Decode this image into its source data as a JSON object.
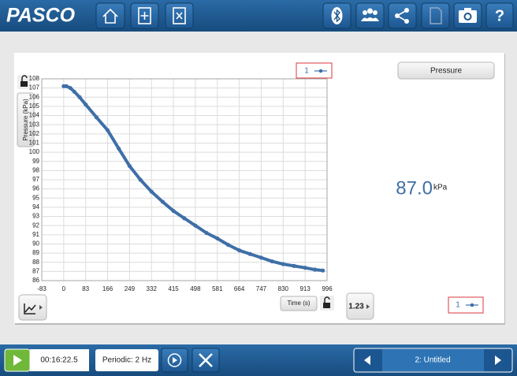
{
  "header": {
    "logo": "PASCO",
    "help": "?"
  },
  "chart_data": {
    "type": "line",
    "x": [
      0,
      10,
      25,
      40,
      60,
      83,
      124,
      166,
      208,
      249,
      290,
      332,
      374,
      415,
      456,
      498,
      540,
      581,
      622,
      664,
      705,
      747,
      788,
      830,
      871,
      913,
      950,
      980
    ],
    "series": [
      {
        "name": "1",
        "color": "#3f6fa8",
        "values": [
          107.2,
          107.2,
          107.0,
          106.6,
          106.0,
          105.2,
          103.8,
          102.4,
          100.4,
          98.5,
          97.0,
          95.7,
          94.6,
          93.6,
          92.8,
          92.0,
          91.2,
          90.6,
          89.9,
          89.3,
          88.9,
          88.5,
          88.1,
          87.8,
          87.6,
          87.4,
          87.2,
          87.1
        ]
      }
    ],
    "xlim": [
      -83,
      996
    ],
    "ylim": [
      86,
      108
    ],
    "xticks": [
      -83,
      0,
      83,
      166,
      249,
      332,
      415,
      498,
      581,
      664,
      747,
      830,
      913,
      996
    ],
    "yticks": [
      86,
      87,
      88,
      89,
      90,
      91,
      92,
      93,
      94,
      95,
      96,
      97,
      98,
      99,
      100,
      101,
      102,
      103,
      104,
      105,
      106,
      107,
      108
    ],
    "x_label": "Time (s)",
    "y_label": "Pressure (kPa)",
    "grid": true
  },
  "digits": {
    "title": "Pressure",
    "value": "87.0",
    "unit": "kPa",
    "legend": "1",
    "button": "1.23"
  },
  "footer": {
    "time": "00:16:22.5",
    "sampling": "Periodic: 2 Hz",
    "page": "2: Untitled"
  }
}
